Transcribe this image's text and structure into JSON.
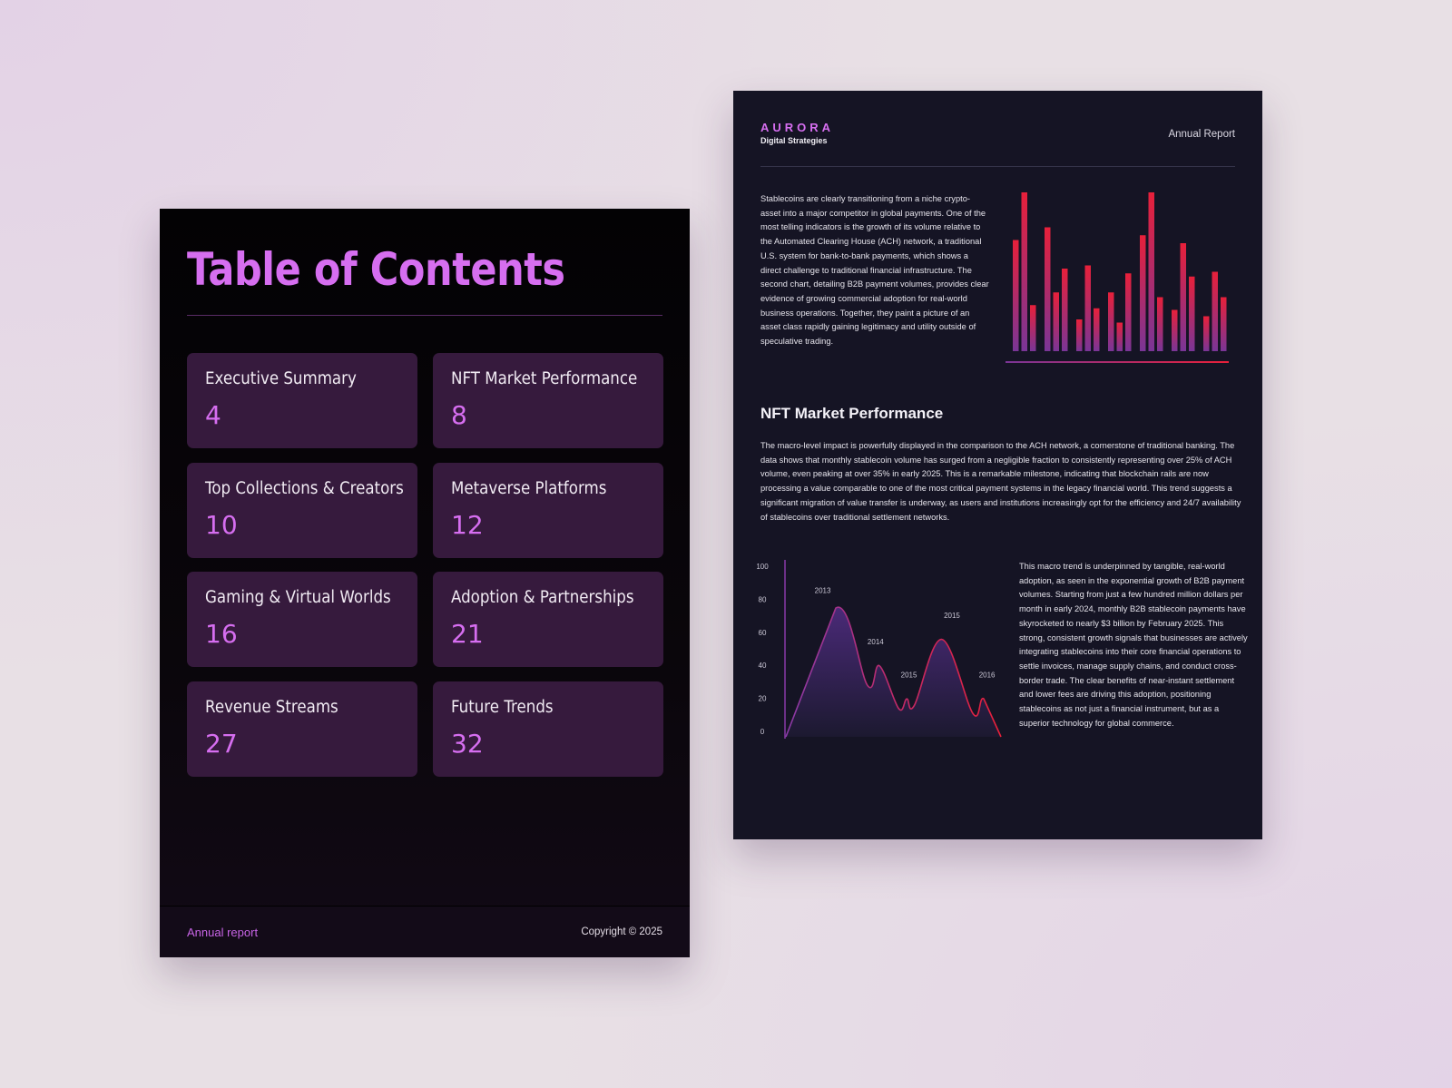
{
  "toc_page": {
    "title": "Table of Contents",
    "entries": [
      {
        "label": "Executive Summary",
        "page": "4"
      },
      {
        "label": "NFT Market Performance",
        "page": "8"
      },
      {
        "label": "Top Collections & Creators",
        "page": "10"
      },
      {
        "label": "Metaverse Platforms",
        "page": "12"
      },
      {
        "label": "Gaming & Virtual Worlds",
        "page": "16"
      },
      {
        "label": "Adoption & Partnerships",
        "page": "21"
      },
      {
        "label": "Revenue Streams",
        "page": "27"
      },
      {
        "label": "Future Trends",
        "page": "32"
      }
    ],
    "footer_left": "Annual report",
    "footer_right": "Copyright © 2025"
  },
  "report_page": {
    "brand": "AURORA",
    "brand_sub": "Digital Strategies",
    "header_right": "Annual Report",
    "para1": "Stablecoins are clearly transitioning from a niche crypto-asset into a major competitor in global payments. One of the most telling indicators is the growth of its volume relative to the Automated Clearing House (ACH) network, a traditional U.S. system for bank-to-bank payments, which shows a direct challenge to traditional financial infrastructure. The second chart, detailing B2B payment volumes, provides clear evidence of growing commercial adoption for real-world business operations. Together, they paint a picture of an asset class rapidly gaining legitimacy and utility outside of speculative trading.",
    "heading": "NFT Market Performance",
    "para2": "The macro-level impact is powerfully displayed in the comparison to the ACH network, a cornerstone of traditional banking. The data shows that monthly stablecoin volume has surged from a negligible fraction to consistently representing over 25% of ACH volume, even peaking at over 35% in early 2025. This is a remarkable milestone, indicating that blockchain rails are now processing a value comparable to one of the most critical payment systems in the legacy financial world. This trend suggests a significant migration of value transfer is underway, as users and institutions increasingly opt for the efficiency and 24/7 availability of stablecoins over traditional settlement networks.",
    "para3": "This macro trend is underpinned by tangible, real-world adoption, as seen in the exponential growth of B2B payment volumes. Starting from just a few hundred million dollars per month in early 2024, monthly B2B stablecoin payments have skyrocketed to nearly $3 billion by February 2025. This strong, consistent growth signals that businesses are actively integrating stablecoins into their core financial operations to settle invoices, manage supply chains, and conduct cross-border trade. The clear benefits of near-instant settlement and lower fees are driving this adoption, positioning stablecoins as not just a financial instrument, but as a superior technology for global commerce."
  },
  "colors": {
    "accent": "#d66ef0",
    "card": "#361a3d",
    "bar_top": "#e8203a",
    "bar_bottom": "#7a3596"
  },
  "chart_data": [
    {
      "type": "bar",
      "values": [
        70,
        100,
        29,
        78,
        37,
        52,
        20,
        54,
        27,
        37,
        18,
        49,
        73,
        100,
        34,
        26,
        68,
        47,
        22,
        50,
        34
      ],
      "grid": false,
      "axis_ticks": false
    },
    {
      "type": "area",
      "yticks": [
        "0",
        "20",
        "40",
        "60",
        "80",
        "100"
      ],
      "ylim": [
        0,
        100
      ],
      "values": [
        0,
        78,
        31,
        43,
        17,
        23,
        19,
        59,
        14,
        23,
        0
      ],
      "annotations": [
        "2013",
        "2014",
        "2015",
        "2015",
        "2016"
      ],
      "grid": false
    }
  ]
}
